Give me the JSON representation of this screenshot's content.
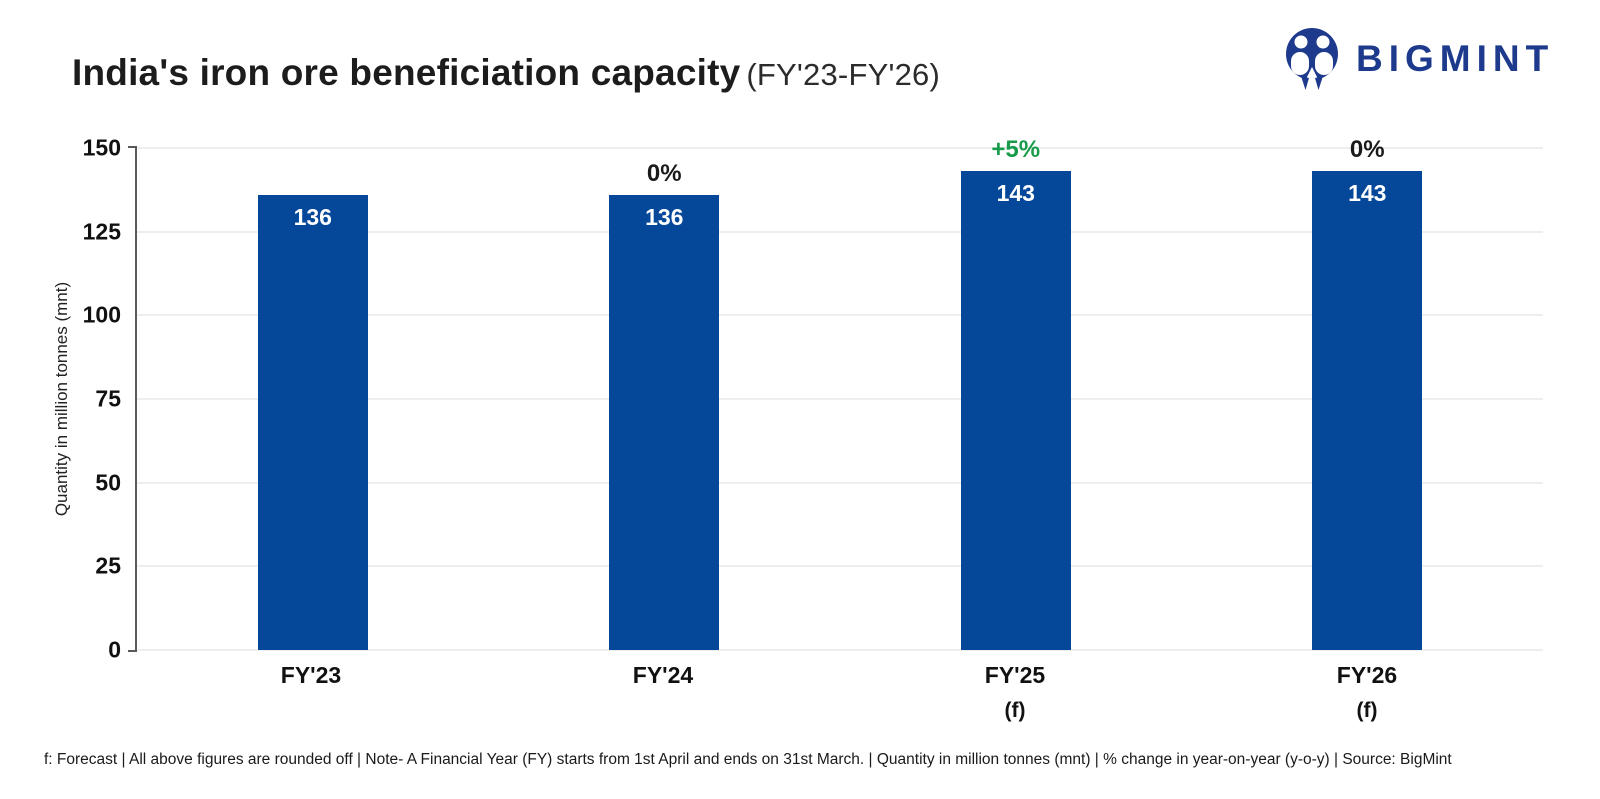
{
  "header": {
    "title": "India's iron ore beneficiation capacity",
    "title_suffix": "(FY'23-FY'26)",
    "brand": "BIGMINT"
  },
  "chart_data": {
    "type": "bar",
    "title": "India's iron ore beneficiation capacity (FY'23-FY'26)",
    "categories": [
      "FY'23",
      "FY'24",
      "FY'25",
      "FY'26"
    ],
    "category_sublabels": [
      "",
      "",
      "(f)",
      "(f)"
    ],
    "values": [
      136,
      136,
      143,
      143
    ],
    "change_labels": [
      "",
      "0%",
      "+5%",
      "0%"
    ],
    "xlabel": "",
    "ylabel": "Quantity in million tonnes (mnt)",
    "ylim": [
      0,
      150
    ],
    "y_ticks": [
      0,
      25,
      50,
      75,
      100,
      125,
      150
    ],
    "grid": "horizontal",
    "legend": "none",
    "bar_color": "#05489a",
    "bar_value_label_color": "#ffffff",
    "positive_change_color": "#169b4a",
    "neutral_change_color": "#1a1a1a"
  },
  "footer": {
    "note": "f: Forecast | All above figures are rounded off | Note- A Financial Year (FY) starts from 1st April and ends on 31st March. | Quantity in million tonnes (mnt) | % change in year-on-year (y-o-y) | Source: BigMint"
  }
}
